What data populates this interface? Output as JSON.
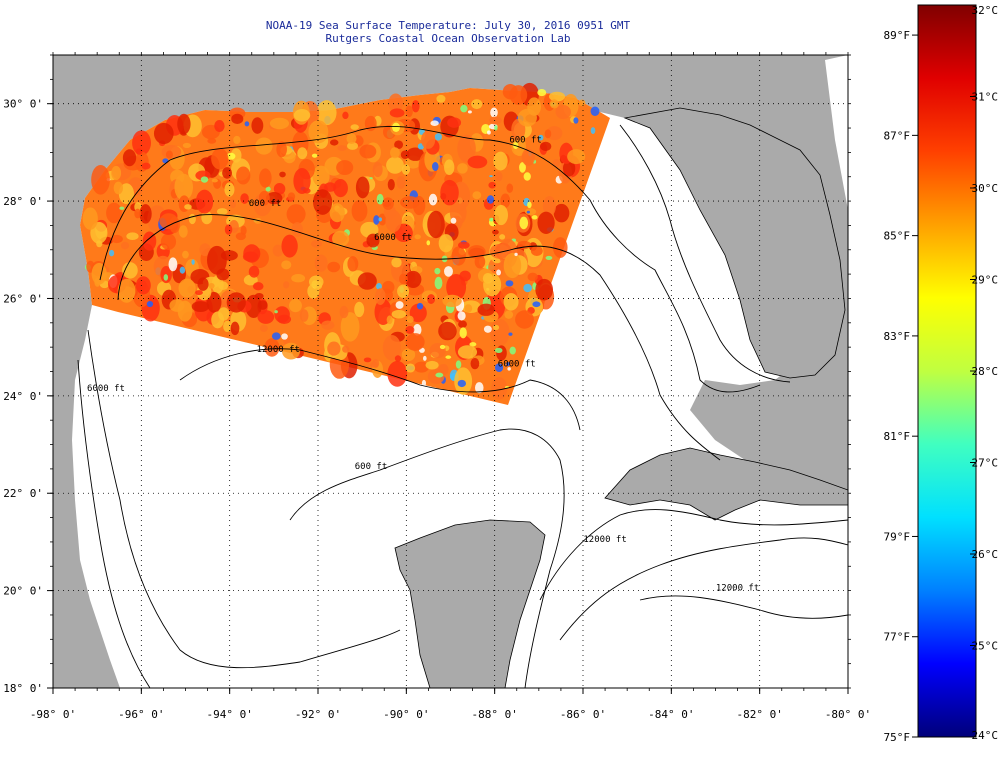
{
  "title": {
    "line1": "NOAA-19 Sea Surface Temperature:  July 30, 2016 0951 GMT",
    "line2": "Rutgers Coastal Ocean Observation Lab"
  },
  "map": {
    "lon_range": [
      -98,
      -80
    ],
    "lat_range": [
      18,
      31
    ],
    "x_ticks": [
      {
        "value": -98,
        "label": "-98° 0'"
      },
      {
        "value": -96,
        "label": "-96° 0'"
      },
      {
        "value": -94,
        "label": "-94° 0'"
      },
      {
        "value": -92,
        "label": "-92° 0'"
      },
      {
        "value": -90,
        "label": "-90° 0'"
      },
      {
        "value": -88,
        "label": "-88° 0'"
      },
      {
        "value": -86,
        "label": "-86° 0'"
      },
      {
        "value": -84,
        "label": "-84° 0'"
      },
      {
        "value": -82,
        "label": "-82° 0'"
      },
      {
        "value": -80,
        "label": "-80° 0'"
      }
    ],
    "y_ticks": [
      {
        "value": 18,
        "label": "18° 0'"
      },
      {
        "value": 20,
        "label": "20° 0'"
      },
      {
        "value": 22,
        "label": "22° 0'"
      },
      {
        "value": 24,
        "label": "24° 0'"
      },
      {
        "value": 26,
        "label": "26° 0'"
      },
      {
        "value": 28,
        "label": "28° 0'"
      },
      {
        "value": 30,
        "label": "30° 0'"
      }
    ],
    "grid": "dotted",
    "land_color": "#aaaaaa",
    "ocean_color": "#ffffff",
    "contour_labels": [
      {
        "text": "600 ft",
        "lon": -87.3,
        "lat": 29.2
      },
      {
        "text": "600 ft",
        "lon": -93.2,
        "lat": 27.9
      },
      {
        "text": "6000 ft",
        "lon": -90.3,
        "lat": 27.2
      },
      {
        "text": "12000 ft",
        "lon": -92.9,
        "lat": 24.9
      },
      {
        "text": "6000 ft",
        "lon": -87.5,
        "lat": 24.6
      },
      {
        "text": "6000 ft",
        "lon": -96.8,
        "lat": 24.1
      },
      {
        "text": "600 ft",
        "lon": -90.8,
        "lat": 22.5
      },
      {
        "text": "12000 ft",
        "lon": -85.5,
        "lat": 21.0
      },
      {
        "text": "12000 ft",
        "lon": -82.5,
        "lat": 20.0
      }
    ]
  },
  "colorbar": {
    "scale": [
      "#00007a",
      "#0000ff",
      "#0080ff",
      "#00e0ff",
      "#40ffc0",
      "#c0ff40",
      "#ffff00",
      "#ffa000",
      "#ff4000",
      "#e00000",
      "#800000"
    ],
    "celsius_range": [
      24,
      32
    ],
    "fahrenheit_range": [
      75,
      89.6
    ],
    "celsius_ticks": [
      {
        "value": 32,
        "label": "32°C"
      },
      {
        "value": 31,
        "label": "31°C"
      },
      {
        "value": 30,
        "label": "30°C"
      },
      {
        "value": 29,
        "label": "29°C"
      },
      {
        "value": 28,
        "label": "28°C"
      },
      {
        "value": 27,
        "label": "27°C"
      },
      {
        "value": 26,
        "label": "26°C"
      },
      {
        "value": 25,
        "label": "25°C"
      },
      {
        "value": 24,
        "label": "24°C"
      }
    ],
    "fahrenheit_ticks": [
      {
        "value": 89,
        "label": "89°F"
      },
      {
        "value": 87,
        "label": "87°F"
      },
      {
        "value": 85,
        "label": "85°F"
      },
      {
        "value": 83,
        "label": "83°F"
      },
      {
        "value": 81,
        "label": "81°F"
      },
      {
        "value": 79,
        "label": "79°F"
      },
      {
        "value": 77,
        "label": "77°F"
      },
      {
        "value": 75,
        "label": "75°F"
      }
    ]
  }
}
